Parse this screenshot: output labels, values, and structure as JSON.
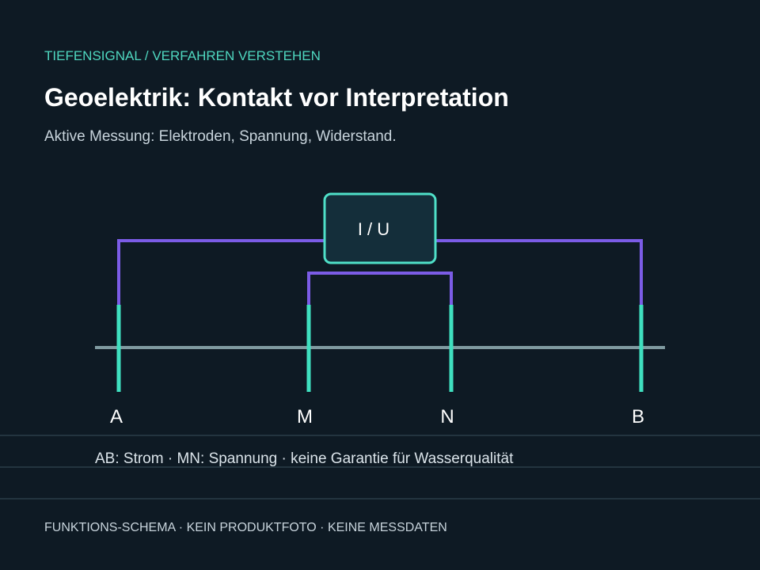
{
  "header": {
    "kicker": "TIEFENSIGNAL / VERFAHREN VERSTEHEN",
    "title": "Geoelektrik: Kontakt vor Interpretation",
    "subtitle": "Aktive Messung: Elektroden, Spannung, Widerstand."
  },
  "diagram": {
    "instrument": "I / U",
    "electrodes": [
      "A",
      "M",
      "N",
      "B"
    ],
    "caption": "AB: Strom · MN: Spannung · keine Garantie für Wasserqualität"
  },
  "footer": "FUNKTIONS-SCHEMA · KEIN PRODUKTFOTO · KEINE MESSDATEN"
}
